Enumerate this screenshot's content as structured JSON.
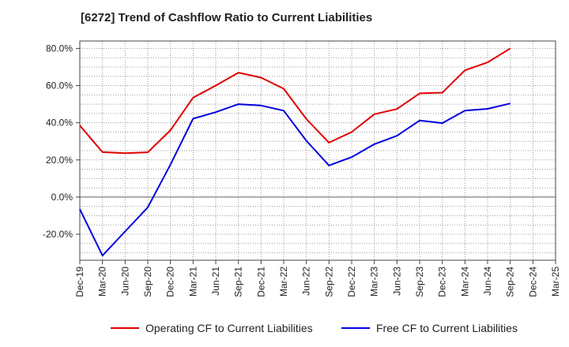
{
  "chart_data": {
    "type": "line",
    "title": "[6272]  Trend of Cashflow Ratio to Current Liabilities",
    "xlabel": "",
    "ylabel": "",
    "categories": [
      "Dec-19",
      "Mar-20",
      "Jun-20",
      "Sep-20",
      "Dec-20",
      "Mar-21",
      "Jun-21",
      "Sep-21",
      "Dec-21",
      "Mar-22",
      "Jun-22",
      "Sep-22",
      "Dec-22",
      "Mar-23",
      "Jun-23",
      "Sep-23",
      "Dec-23",
      "Mar-24",
      "Jun-24",
      "Sep-24",
      "Dec-24",
      "Mar-25"
    ],
    "ylim": [
      -34,
      84
    ],
    "yticks": [
      -20,
      0,
      20,
      40,
      60,
      80
    ],
    "ytick_labels": [
      "-20.0%",
      "0.0%",
      "20.0%",
      "40.0%",
      "60.0%",
      "80.0%"
    ],
    "grid": true,
    "legend_position": "bottom",
    "series": [
      {
        "name": "Operating CF to Current Liabilities",
        "color": "#e00000",
        "values": [
          38.5,
          24.2,
          23.6,
          24.1,
          36.0,
          53.5,
          60.0,
          67.0,
          64.3,
          58.3,
          42.0,
          29.3,
          35.0,
          44.6,
          47.4,
          55.8,
          56.2,
          68.2,
          72.5,
          80.0,
          null,
          null
        ]
      },
      {
        "name": "Free CF to Current Liabilities",
        "color": "#0000e0",
        "values": [
          -6.5,
          -31.5,
          -18.5,
          -5.5,
          17.5,
          42.2,
          45.7,
          50.0,
          49.3,
          46.5,
          30.3,
          17.0,
          21.5,
          28.5,
          33.0,
          41.2,
          39.8,
          46.5,
          47.5,
          50.4,
          null,
          null
        ]
      }
    ]
  }
}
